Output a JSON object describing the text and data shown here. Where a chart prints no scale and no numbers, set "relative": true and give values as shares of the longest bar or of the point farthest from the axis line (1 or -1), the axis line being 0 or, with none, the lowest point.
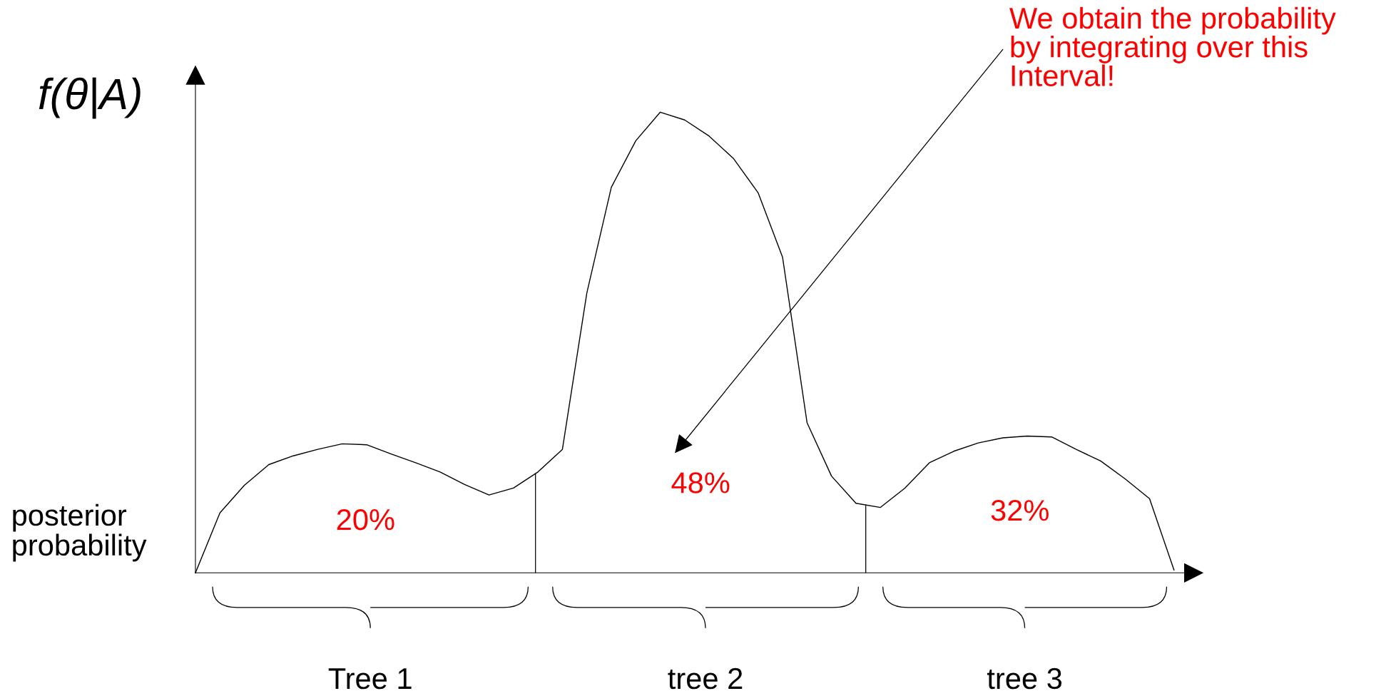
{
  "chart_data": {
    "type": "line",
    "relative": true,
    "ylabel": "f(θ|A)",
    "categories": [
      null,
      null,
      null,
      null,
      null,
      null,
      null,
      null,
      null,
      null,
      null,
      null,
      null,
      null,
      null,
      null,
      null,
      null,
      null,
      null,
      null,
      null,
      null,
      null,
      null,
      null,
      null,
      null,
      null,
      null,
      null,
      null,
      null,
      null,
      null,
      null,
      null,
      null,
      null,
      null,
      null
    ],
    "series": [
      {
        "color": "#000000",
        "values": [
          0,
          0.13,
          0.19,
          0.235,
          0.254,
          0.268,
          0.28,
          0.278,
          0.258,
          0.239,
          0.219,
          0.192,
          0.169,
          0.184,
          0.219,
          0.268,
          0.608,
          0.837,
          0.938,
          1,
          0.983,
          0.948,
          0.899,
          0.825,
          0.685,
          0.326,
          0.21,
          0.151,
          0.142,
          0.184,
          0.239,
          0.264,
          0.282,
          0.293,
          0.297,
          0.295,
          0.268,
          0.243,
          0.204,
          0.161,
          0.006
        ]
      }
    ],
    "annotations": [
      "20%",
      "48%",
      "32%",
      "Tree 1",
      "tree 2",
      "tree 3",
      "We obtain the probability\nby integrating over this\nInterval!",
      "posterior\nprobability"
    ],
    "marker": "none",
    "line_style": "solid"
  }
}
